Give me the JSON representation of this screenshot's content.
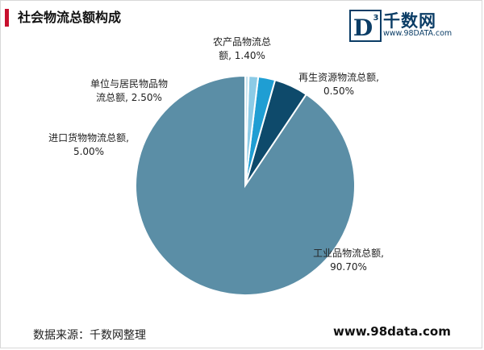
{
  "title": "社会物流总额构成",
  "logo": {
    "name": "千数网",
    "url": "www.98DATA.com",
    "mark": "D",
    "mark_sup": "3"
  },
  "chart_data": {
    "type": "pie",
    "title": "社会物流总额构成",
    "slices": [
      {
        "label_lines": [
          "工业品物流总额,",
          "90.70%"
        ],
        "name": "工业品物流总额",
        "value": 90.7,
        "color": "#5b8ea6"
      },
      {
        "label_lines": [
          "进口货物物流总额,",
          "5.00%"
        ],
        "name": "进口货物物流总额",
        "value": 5.0,
        "color": "#0e4a6b"
      },
      {
        "label_lines": [
          "单位与居民物品物",
          "流总额, 2.50%"
        ],
        "name": "单位与居民物品物流总额",
        "value": 2.5,
        "color": "#1f9ed3"
      },
      {
        "label_lines": [
          "农产品物流总",
          "额, 1.40%"
        ],
        "name": "农产品物流总额",
        "value": 1.4,
        "color": "#8ccbe6"
      },
      {
        "label_lines": [
          "再生资源物流总额,",
          "0.50%"
        ],
        "name": "再生资源物流总额",
        "value": 0.5,
        "color": "#c5e3f0"
      }
    ]
  },
  "footer": {
    "source": "数据来源：千数网整理",
    "url": "www.98data.com"
  }
}
